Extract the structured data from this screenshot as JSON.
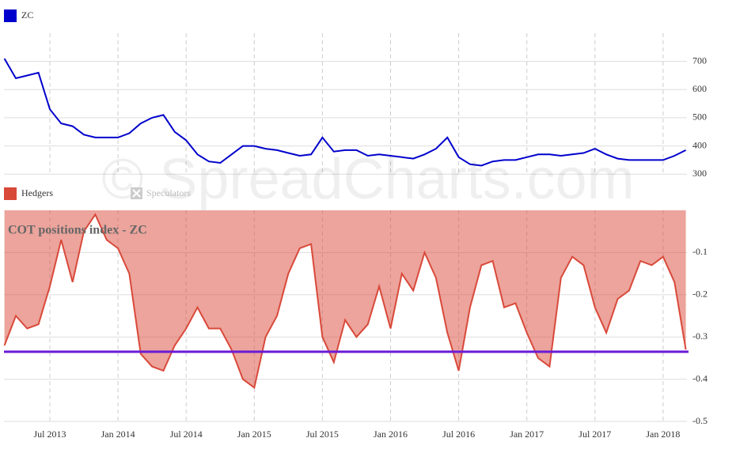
{
  "chart_data": [
    {
      "type": "line",
      "x": [
        "2013-03",
        "2013-04",
        "2013-05",
        "2013-06",
        "2013-07",
        "2013-08",
        "2013-09",
        "2013-10",
        "2013-11",
        "2013-12",
        "2014-01",
        "2014-02",
        "2014-03",
        "2014-04",
        "2014-05",
        "2014-06",
        "2014-07",
        "2014-08",
        "2014-09",
        "2014-10",
        "2014-11",
        "2014-12",
        "2015-01",
        "2015-02",
        "2015-03",
        "2015-04",
        "2015-05",
        "2015-06",
        "2015-07",
        "2015-08",
        "2015-09",
        "2015-10",
        "2015-11",
        "2015-12",
        "2016-01",
        "2016-02",
        "2016-03",
        "2016-04",
        "2016-05",
        "2016-06",
        "2016-07",
        "2016-08",
        "2016-09",
        "2016-10",
        "2016-11",
        "2016-12",
        "2017-01",
        "2017-02",
        "2017-03",
        "2017-04",
        "2017-05",
        "2017-06",
        "2017-07",
        "2017-08",
        "2017-09",
        "2017-10",
        "2017-11",
        "2017-12",
        "2018-01",
        "2018-02",
        "2018-03"
      ],
      "series": [
        {
          "name": "ZC",
          "color": "#0000cc",
          "values": [
            710,
            640,
            650,
            660,
            530,
            480,
            470,
            440,
            430,
            430,
            430,
            445,
            480,
            500,
            510,
            450,
            420,
            370,
            345,
            340,
            370,
            400,
            400,
            390,
            385,
            375,
            365,
            370,
            430,
            380,
            385,
            385,
            365,
            370,
            365,
            360,
            355,
            370,
            390,
            430,
            360,
            335,
            330,
            345,
            350,
            350,
            360,
            370,
            370,
            365,
            370,
            375,
            390,
            370,
            355,
            350,
            350,
            350,
            350,
            365,
            385
          ]
        }
      ],
      "ylim": [
        295,
        800
      ],
      "yticks": [
        300,
        400,
        500,
        600,
        700
      ],
      "grid": true
    },
    {
      "type": "area",
      "annotation": "COT positions index - ZC",
      "watermark": "© SpreadCharts.com",
      "x": [
        "2013-03",
        "2013-04",
        "2013-05",
        "2013-06",
        "2013-07",
        "2013-08",
        "2013-09",
        "2013-10",
        "2013-11",
        "2013-12",
        "2014-01",
        "2014-02",
        "2014-03",
        "2014-04",
        "2014-05",
        "2014-06",
        "2014-07",
        "2014-08",
        "2014-09",
        "2014-10",
        "2014-11",
        "2014-12",
        "2015-01",
        "2015-02",
        "2015-03",
        "2015-04",
        "2015-05",
        "2015-06",
        "2015-07",
        "2015-08",
        "2015-09",
        "2015-10",
        "2015-11",
        "2015-12",
        "2016-01",
        "2016-02",
        "2016-03",
        "2016-04",
        "2016-05",
        "2016-06",
        "2016-07",
        "2016-08",
        "2016-09",
        "2016-10",
        "2016-11",
        "2016-12",
        "2017-01",
        "2017-02",
        "2017-03",
        "2017-04",
        "2017-05",
        "2017-06",
        "2017-07",
        "2017-08",
        "2017-09",
        "2017-10",
        "2017-11",
        "2017-12",
        "2018-01",
        "2018-02",
        "2018-03"
      ],
      "series": [
        {
          "name": "Hedgers",
          "color": "#d9493a",
          "values": [
            -0.32,
            -0.25,
            -0.28,
            -0.27,
            -0.18,
            -0.07,
            -0.17,
            -0.05,
            -0.01,
            -0.07,
            -0.09,
            -0.15,
            -0.34,
            -0.37,
            -0.38,
            -0.32,
            -0.28,
            -0.23,
            -0.28,
            -0.28,
            -0.33,
            -0.4,
            -0.42,
            -0.3,
            -0.25,
            -0.15,
            -0.09,
            -0.08,
            -0.3,
            -0.36,
            -0.26,
            -0.3,
            -0.27,
            -0.18,
            -0.28,
            -0.15,
            -0.19,
            -0.1,
            -0.16,
            -0.29,
            -0.38,
            -0.23,
            -0.13,
            -0.12,
            -0.23,
            -0.22,
            -0.29,
            -0.35,
            -0.37,
            -0.16,
            -0.11,
            -0.13,
            -0.23,
            -0.29,
            -0.21,
            -0.19,
            -0.12,
            -0.13,
            -0.11,
            -0.17,
            -0.33
          ]
        }
      ],
      "legend_hidden": [
        "Speculators"
      ],
      "reference_line": {
        "value": -0.335,
        "color": "#6a1bd6"
      },
      "ylim": [
        -0.5,
        0
      ],
      "yticks": [
        -0.1,
        -0.2,
        -0.3,
        -0.4,
        -0.5
      ],
      "grid": true,
      "xticks": [
        {
          "value": "2013-07",
          "label": "Jul 2013"
        },
        {
          "value": "2014-01",
          "label": "Jan 2014"
        },
        {
          "value": "2014-07",
          "label": "Jul 2014"
        },
        {
          "value": "2015-01",
          "label": "Jan 2015"
        },
        {
          "value": "2015-07",
          "label": "Jul 2015"
        },
        {
          "value": "2016-01",
          "label": "Jan 2016"
        },
        {
          "value": "2016-07",
          "label": "Jul 2016"
        },
        {
          "value": "2017-01",
          "label": "Jan 2017"
        },
        {
          "value": "2017-07",
          "label": "Jul 2017"
        },
        {
          "value": "2018-01",
          "label": "Jan 2018"
        }
      ]
    }
  ]
}
